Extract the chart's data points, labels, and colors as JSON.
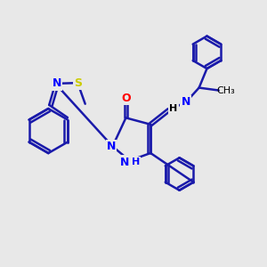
{
  "background_color": "#e8e8e8",
  "bond_color": "#1a1aaa",
  "bond_width": 1.8,
  "atom_colors": {
    "N": "#0000ff",
    "O": "#ff0000",
    "S": "#cccc00",
    "C": "#000000",
    "H": "#0000ff"
  },
  "font_size": 9
}
